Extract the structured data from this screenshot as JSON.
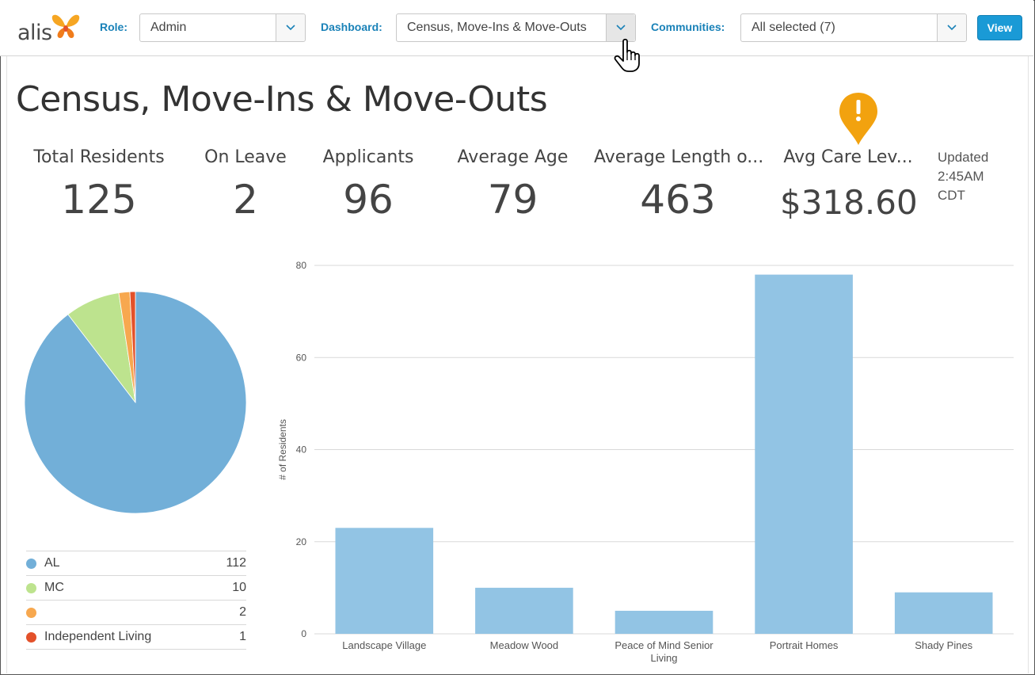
{
  "header": {
    "logo_text": "alis",
    "role_label": "Role:",
    "role_value": "Admin",
    "dashboard_label": "Dashboard:",
    "dashboard_value": "Census, Move-Ins & Move-Outs",
    "communities_label": "Communities:",
    "communities_value": "All selected (7)",
    "view_label": "View"
  },
  "page": {
    "title": "Census, Move-Ins & Move-Outs",
    "updated_line1": "Updated",
    "updated_line2": "2:45AM",
    "updated_line3": "CDT"
  },
  "kpis": [
    {
      "label": "Total Residents",
      "value": "125"
    },
    {
      "label": "On Leave",
      "value": "2"
    },
    {
      "label": "Applicants",
      "value": "96"
    },
    {
      "label": "Average Age",
      "value": "79"
    },
    {
      "label": "Average Length o...",
      "value": "463"
    },
    {
      "label": "Avg Care Lev...",
      "value": "$318.60"
    }
  ],
  "colors": {
    "accent": "#1a82b8",
    "view_button": "#1a9ad6",
    "bar": "#92c4e4",
    "alert_pin": "#f2a20f",
    "AL": "#72afd8",
    "MC": "#bde38e",
    "unnamed": "#f7a84f",
    "independent_living": "#e3512a"
  },
  "chart_data": [
    {
      "type": "pie",
      "categories": [
        "AL",
        "MC",
        "",
        "Independent Living"
      ],
      "values": [
        112,
        10,
        2,
        1
      ],
      "legend_position": "bottom"
    },
    {
      "type": "bar",
      "categories": [
        "Landscape Village",
        "Meadow Wood",
        "Peace of Mind Senior Living",
        "Portrait Homes",
        "Shady Pines"
      ],
      "values": [
        23,
        10,
        5,
        78,
        9
      ],
      "xlabel": "",
      "ylabel": "# of Residents",
      "ylim": [
        0,
        80
      ],
      "yticks": [
        0,
        20,
        40,
        60,
        80
      ],
      "grid": true
    }
  ]
}
